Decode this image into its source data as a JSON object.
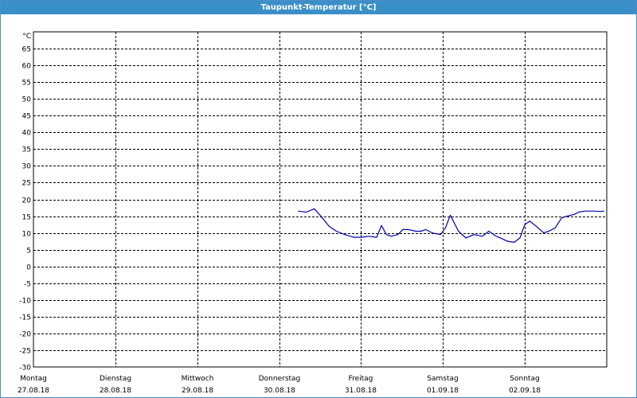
{
  "window": {
    "title": "Taupunkt-Temperatur [°C]"
  },
  "colors": {
    "title_bar": "#3b8fc9",
    "line": "#0000b0",
    "grid": "#000000"
  },
  "chart_data": {
    "type": "line",
    "title": "Taupunkt-Temperatur [°C]",
    "xlabel": "",
    "ylabel": "°C",
    "ylim": [
      -30,
      70
    ],
    "y_ticks": [
      65,
      60,
      55,
      50,
      45,
      40,
      35,
      30,
      25,
      20,
      15,
      10,
      5,
      0,
      -5,
      -10,
      -15,
      -20,
      -25,
      -30
    ],
    "x_range_days": [
      0,
      7
    ],
    "x_ticks": [
      {
        "day": "Montag",
        "date": "27.08.18"
      },
      {
        "day": "Dienstag",
        "date": "28.08.18"
      },
      {
        "day": "Mittwoch",
        "date": "29.08.18"
      },
      {
        "day": "Donnerstag",
        "date": "30.08.18"
      },
      {
        "day": "Freitag",
        "date": "31.08.18"
      },
      {
        "day": "Samstag",
        "date": "01.09.18"
      },
      {
        "day": "Sonntag",
        "date": "02.09.18"
      }
    ],
    "grid": true,
    "series": [
      {
        "color": "#0000b0",
        "x": [
          3.23,
          3.33,
          3.43,
          3.51,
          3.61,
          3.7,
          3.8,
          3.91,
          4.0,
          4.1,
          4.19,
          4.25,
          4.31,
          4.37,
          4.45,
          4.51,
          4.58,
          4.67,
          4.73,
          4.79,
          4.87,
          4.97,
          5.03,
          5.09,
          5.19,
          5.28,
          5.38,
          5.48,
          5.56,
          5.65,
          5.7,
          5.79,
          5.87,
          5.94,
          6.0,
          6.06,
          6.14,
          6.23,
          6.29,
          6.37,
          6.45,
          6.52,
          6.6,
          6.66,
          6.73,
          6.83,
          6.92,
          6.97
        ],
        "y": [
          16.5,
          16.2,
          17.2,
          15.0,
          12.0,
          10.5,
          9.5,
          8.7,
          8.7,
          9.0,
          8.7,
          12.2,
          9.5,
          9.0,
          9.5,
          11.0,
          11.0,
          10.5,
          10.5,
          11.0,
          10.0,
          9.5,
          11.5,
          15.3,
          10.5,
          8.5,
          9.5,
          9.0,
          10.5,
          9.0,
          8.5,
          7.5,
          7.2,
          8.5,
          12.5,
          13.5,
          12.0,
          10.0,
          10.5,
          11.5,
          14.5,
          15.0,
          15.5,
          16.2,
          16.5,
          16.5,
          16.4,
          16.5
        ]
      }
    ]
  }
}
